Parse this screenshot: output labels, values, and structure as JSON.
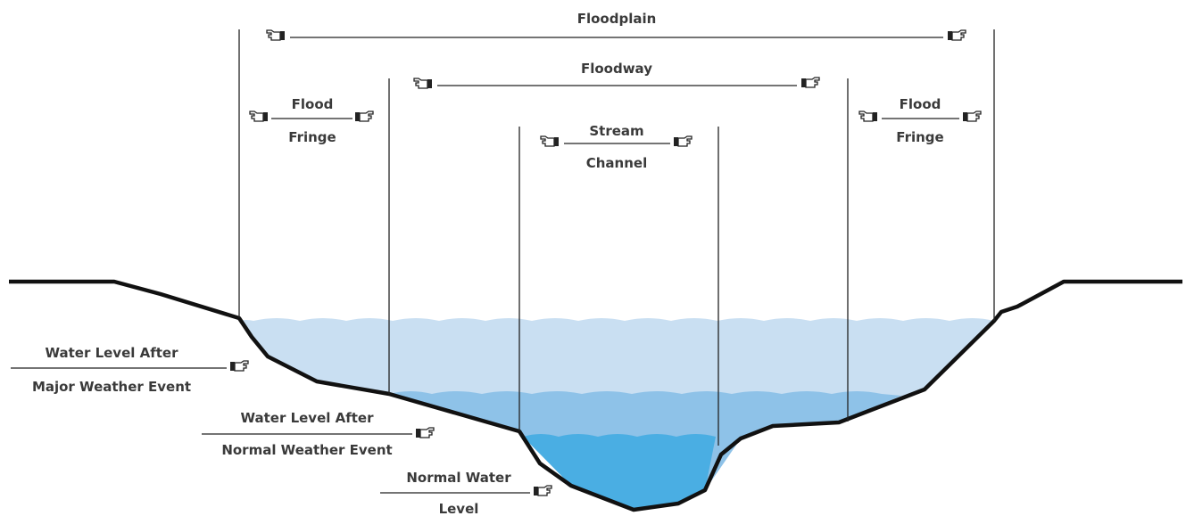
{
  "spans": {
    "floodplain": "Floodplain",
    "floodway": "Floodway",
    "fringe_left": [
      "Flood",
      "Fringe"
    ],
    "fringe_right": [
      "Flood",
      "Fringe"
    ],
    "channel": [
      "Stream",
      "Channel"
    ]
  },
  "water_levels": {
    "major": [
      "Water Level After",
      "Major Weather Event"
    ],
    "normal_event": [
      "Water Level After",
      "Normal Weather Event"
    ],
    "normal": [
      "Normal Water",
      "Level"
    ]
  },
  "colors": {
    "ground": "#111111",
    "water_major": "#c9dff2",
    "water_normal_event": "#8ec2e8",
    "water_normal": "#4aaee3",
    "text": "#3a3a3a"
  },
  "icons": {
    "arrow_left": "pointing-hand-left-icon",
    "arrow_right": "pointing-hand-right-icon"
  }
}
